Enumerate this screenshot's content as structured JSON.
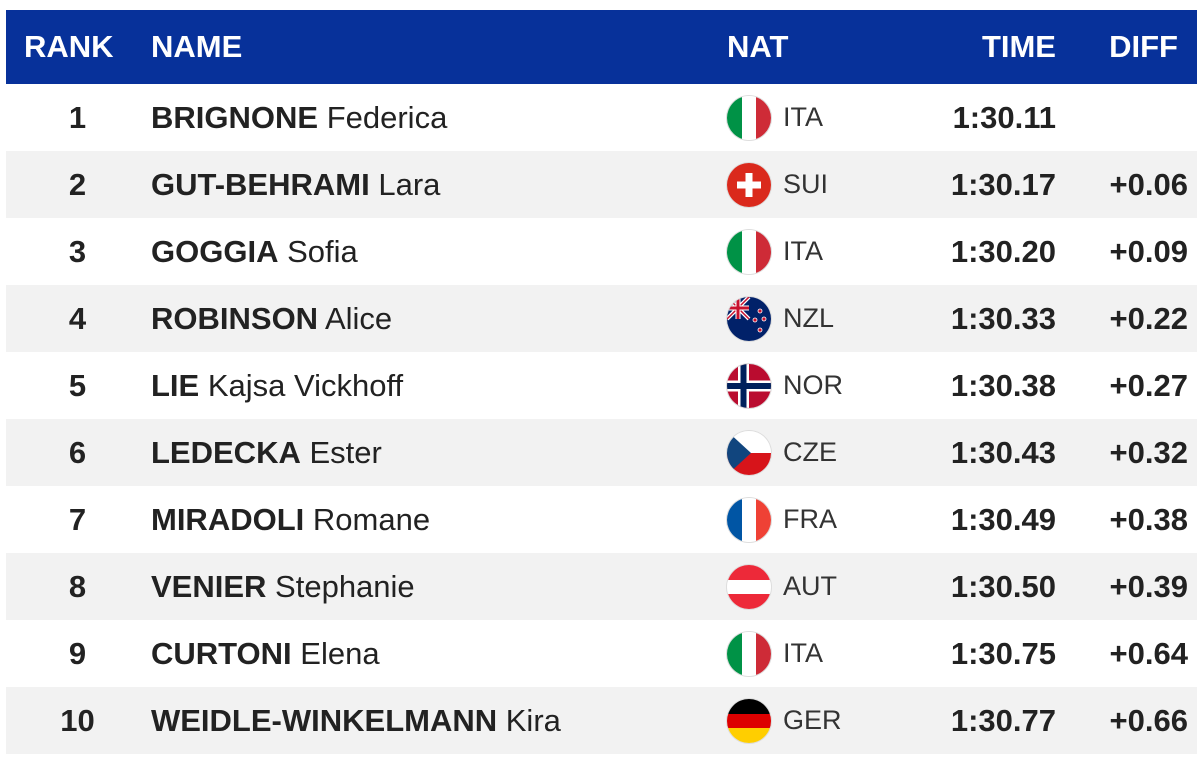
{
  "table": {
    "headers": {
      "rank": "RANK",
      "name": "NAME",
      "nat": "NAT",
      "time": "TIME",
      "diff": "DIFF"
    },
    "rows": [
      {
        "rank": "1",
        "surname": "BRIGNONE",
        "firstname": "Federica",
        "nat": "ITA",
        "time": "1:30.11",
        "diff": ""
      },
      {
        "rank": "2",
        "surname": "GUT-BEHRAMI",
        "firstname": "Lara",
        "nat": "SUI",
        "time": "1:30.17",
        "diff": "+0.06"
      },
      {
        "rank": "3",
        "surname": "GOGGIA",
        "firstname": "Sofia",
        "nat": "ITA",
        "time": "1:30.20",
        "diff": "+0.09"
      },
      {
        "rank": "4",
        "surname": "ROBINSON",
        "firstname": "Alice",
        "nat": "NZL",
        "time": "1:30.33",
        "diff": "+0.22"
      },
      {
        "rank": "5",
        "surname": "LIE",
        "firstname": "Kajsa Vickhoff",
        "nat": "NOR",
        "time": "1:30.38",
        "diff": "+0.27"
      },
      {
        "rank": "6",
        "surname": "LEDECKA",
        "firstname": "Ester",
        "nat": "CZE",
        "time": "1:30.43",
        "diff": "+0.32"
      },
      {
        "rank": "7",
        "surname": "MIRADOLI",
        "firstname": "Romane",
        "nat": "FRA",
        "time": "1:30.49",
        "diff": "+0.38"
      },
      {
        "rank": "8",
        "surname": "VENIER",
        "firstname": "Stephanie",
        "nat": "AUT",
        "time": "1:30.50",
        "diff": "+0.39"
      },
      {
        "rank": "9",
        "surname": "CURTONI",
        "firstname": "Elena",
        "nat": "ITA",
        "time": "1:30.75",
        "diff": "+0.64"
      },
      {
        "rank": "10",
        "surname": "WEIDLE-WINKELMANN",
        "firstname": "Kira",
        "nat": "GER",
        "time": "1:30.77",
        "diff": "+0.66"
      }
    ]
  },
  "colors": {
    "header_bg": "#07319a",
    "header_text": "#ffffff",
    "row_alt_bg": "#f2f2f2"
  },
  "icons": {
    "ITA": "italy-flag-icon",
    "SUI": "switzerland-flag-icon",
    "NZL": "new-zealand-flag-icon",
    "NOR": "norway-flag-icon",
    "CZE": "czech-flag-icon",
    "FRA": "france-flag-icon",
    "AUT": "austria-flag-icon",
    "GER": "germany-flag-icon"
  }
}
